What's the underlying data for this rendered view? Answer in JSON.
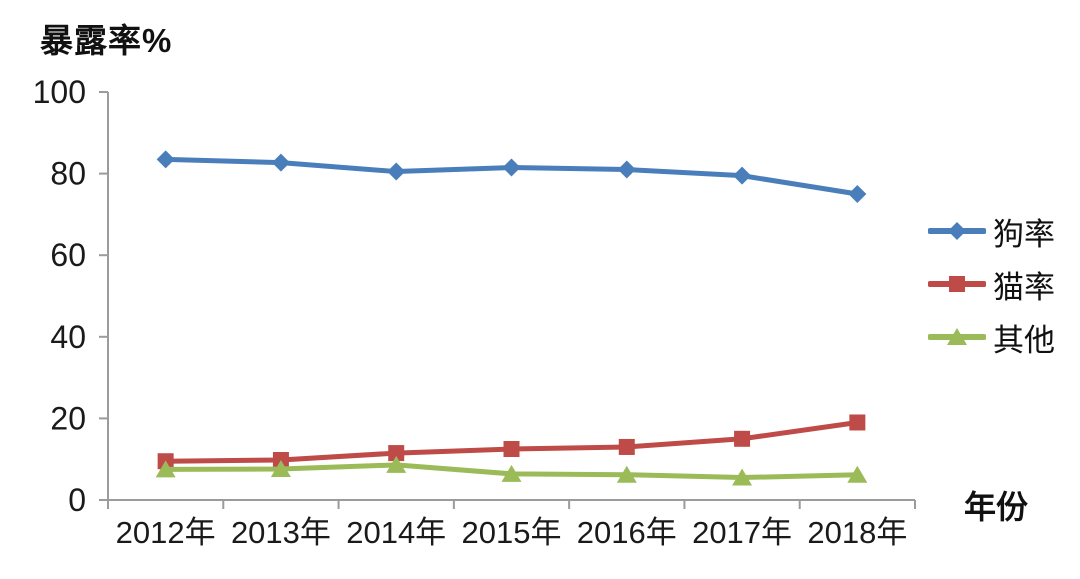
{
  "chart_data": {
    "type": "line",
    "title": "",
    "ylabel": "暴露率%",
    "xlabel": "年份",
    "categories": [
      "2012年",
      "2013年",
      "2014年",
      "2015年",
      "2016年",
      "2017年",
      "2018年"
    ],
    "series": [
      {
        "name": "狗率",
        "marker": "diamond",
        "color": "#4A7EBB",
        "values": [
          83.5,
          82.7,
          80.5,
          81.5,
          81.0,
          79.5,
          75.0
        ]
      },
      {
        "name": "猫率",
        "marker": "square",
        "color": "#BE4B48",
        "values": [
          9.5,
          9.8,
          11.5,
          12.5,
          13.0,
          15.0,
          19.0
        ]
      },
      {
        "name": "其他",
        "marker": "triangle",
        "color": "#9BBB59",
        "values": [
          7.5,
          7.6,
          8.6,
          6.4,
          6.2,
          5.5,
          6.2
        ]
      }
    ],
    "ylim": [
      0,
      100
    ],
    "yticks": [
      0,
      20,
      40,
      60,
      80,
      100
    ],
    "grid": false,
    "legend_position": "right"
  },
  "style": {
    "axis_color": "#9B9B9B",
    "text_color": "#1A1A1A",
    "background": "#FFFFFF"
  }
}
